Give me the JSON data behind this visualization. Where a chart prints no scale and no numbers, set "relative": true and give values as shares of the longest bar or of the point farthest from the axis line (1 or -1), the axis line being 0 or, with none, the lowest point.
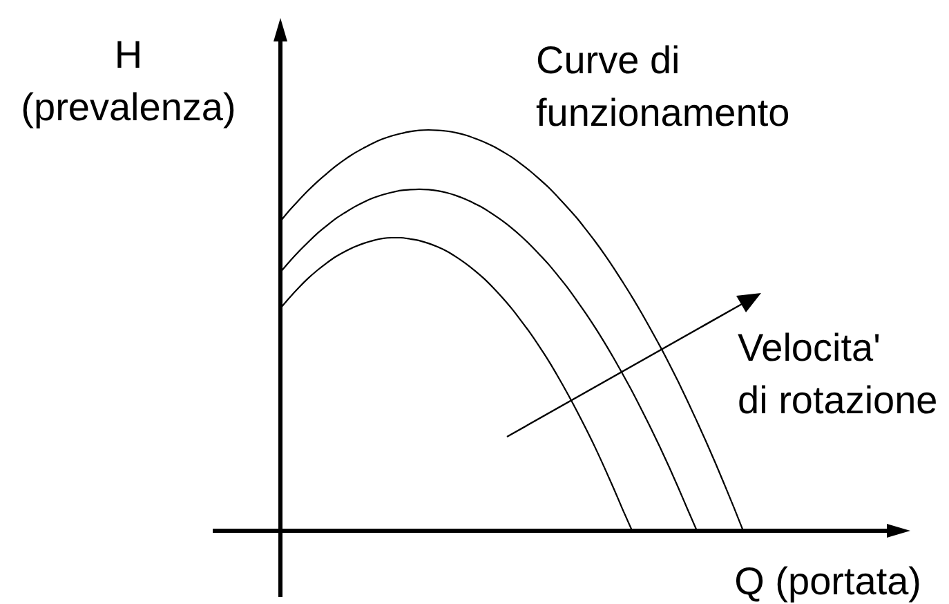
{
  "chart_data": {
    "type": "line",
    "relative": true,
    "xlabel": "Q (portata)",
    "ylabel": "H\n(prevalenza)",
    "annotations": [
      "Curve di\nfunzionamento",
      "Velocita'\ndi rotazione"
    ],
    "categories": [
      null,
      null,
      null,
      null,
      null,
      null,
      null,
      null,
      null,
      null,
      null,
      null,
      null,
      null,
      null,
      null,
      null,
      null,
      null,
      null,
      null,
      null,
      null,
      null,
      null,
      null,
      null,
      null,
      null,
      null,
      null,
      null,
      null,
      null,
      null,
      null,
      null,
      null,
      null,
      null,
      null,
      null,
      null,
      null,
      null,
      null,
      null,
      null,
      null,
      null,
      null
    ],
    "series": [
      {
        "color": "#000000",
        "values": [
          0.772,
          0.8,
          0.825,
          0.849,
          0.871,
          0.891,
          0.91,
          0.927,
          0.942,
          0.955,
          0.967,
          0.977,
          0.985,
          0.991,
          0.996,
          0.999,
          1.0,
          0.999,
          0.997,
          0.993,
          0.987,
          0.979,
          0.97,
          0.959,
          0.946,
          0.932,
          0.915,
          0.897,
          0.877,
          0.856,
          0.832,
          0.807,
          0.781,
          0.752,
          0.722,
          0.69,
          0.656,
          0.62,
          0.583,
          0.544,
          0.503,
          0.461,
          0.417,
          0.371,
          0.323,
          0.273,
          0.222,
          0.169,
          0.114,
          0.058,
          0.0
        ]
      },
      {
        "color": "#000000",
        "values": [
          0.645,
          0.672,
          0.697,
          0.72,
          0.742,
          0.761,
          0.779,
          0.794,
          0.808,
          0.82,
          0.83,
          0.838,
          0.844,
          0.849,
          0.851,
          0.852,
          0.851,
          0.848,
          0.843,
          0.836,
          0.827,
          0.816,
          0.804,
          0.789,
          0.773,
          0.755,
          0.735,
          0.713,
          0.689,
          0.664,
          0.636,
          0.607,
          0.575,
          0.542,
          0.507,
          0.47,
          0.431,
          0.39,
          0.348,
          0.303,
          0.257,
          0.209,
          0.159,
          0.107,
          0.053,
          0.0,
          null,
          null,
          null,
          null,
          null
        ]
      },
      {
        "color": "#000000",
        "values": [
          0.555,
          0.582,
          0.607,
          0.63,
          0.65,
          0.668,
          0.684,
          0.697,
          0.708,
          0.717,
          0.724,
          0.729,
          0.731,
          0.731,
          0.728,
          0.724,
          0.717,
          0.708,
          0.697,
          0.683,
          0.667,
          0.649,
          0.629,
          0.606,
          0.581,
          0.554,
          0.524,
          0.493,
          0.459,
          0.423,
          0.384,
          0.343,
          0.3,
          0.255,
          0.208,
          0.158,
          0.106,
          0.052,
          0.0,
          null,
          null,
          null,
          null,
          null,
          null,
          null,
          null,
          null,
          null,
          null,
          null
        ]
      }
    ]
  }
}
